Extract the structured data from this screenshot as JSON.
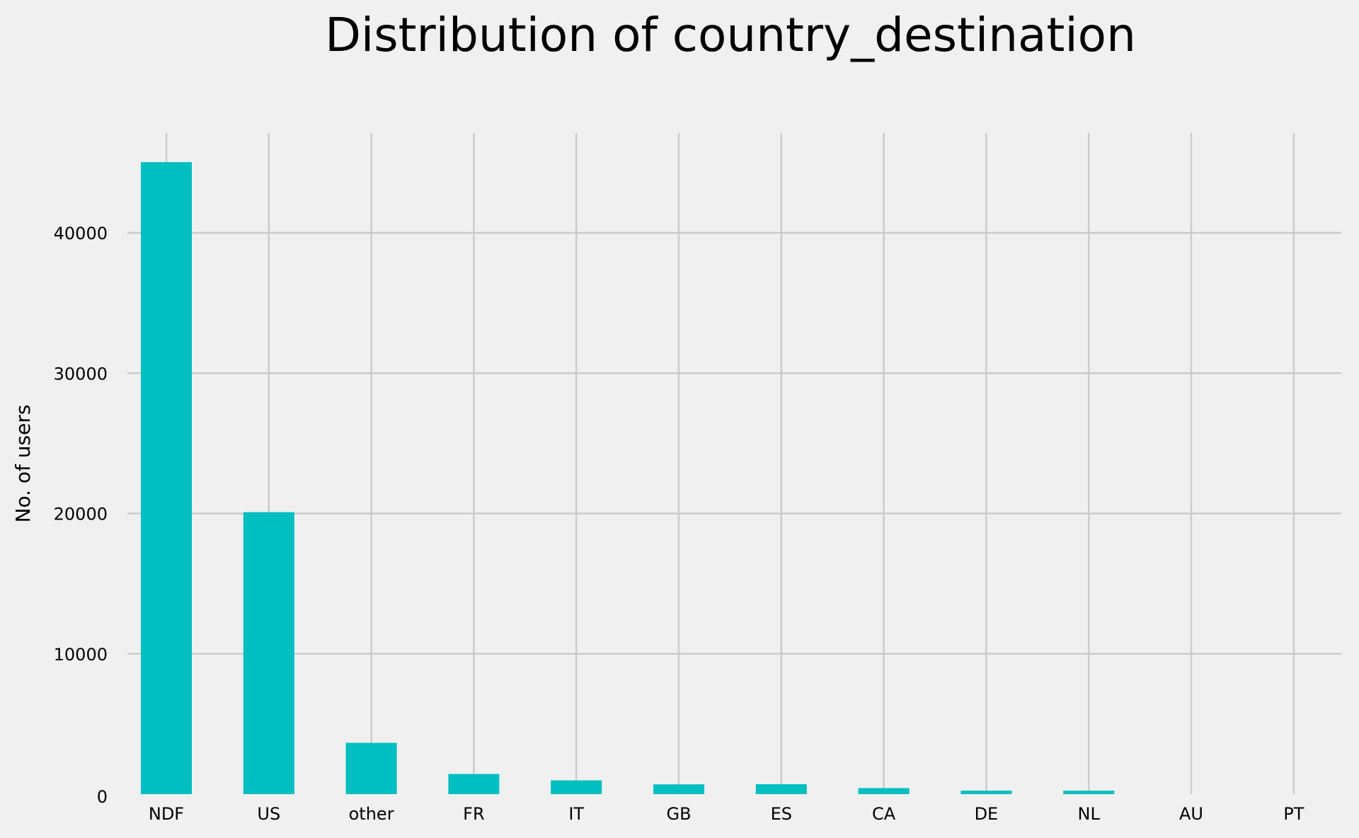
{
  "chart_data": {
    "type": "bar",
    "title": "Distribution of country_destination",
    "xlabel": "",
    "ylabel": "No. of users",
    "categories": [
      "NDF",
      "US",
      "other",
      "FR",
      "IT",
      "GB",
      "ES",
      "CA",
      "DE",
      "NL",
      "AU",
      "PT"
    ],
    "values": [
      45041,
      20095,
      3655,
      1435,
      979,
      697,
      707,
      428,
      250,
      247,
      0,
      0
    ],
    "ylim": [
      0,
      47000
    ],
    "yticks": [
      0,
      10000,
      20000,
      30000,
      40000
    ],
    "grid": true,
    "bar_color": "#00bfc0"
  }
}
